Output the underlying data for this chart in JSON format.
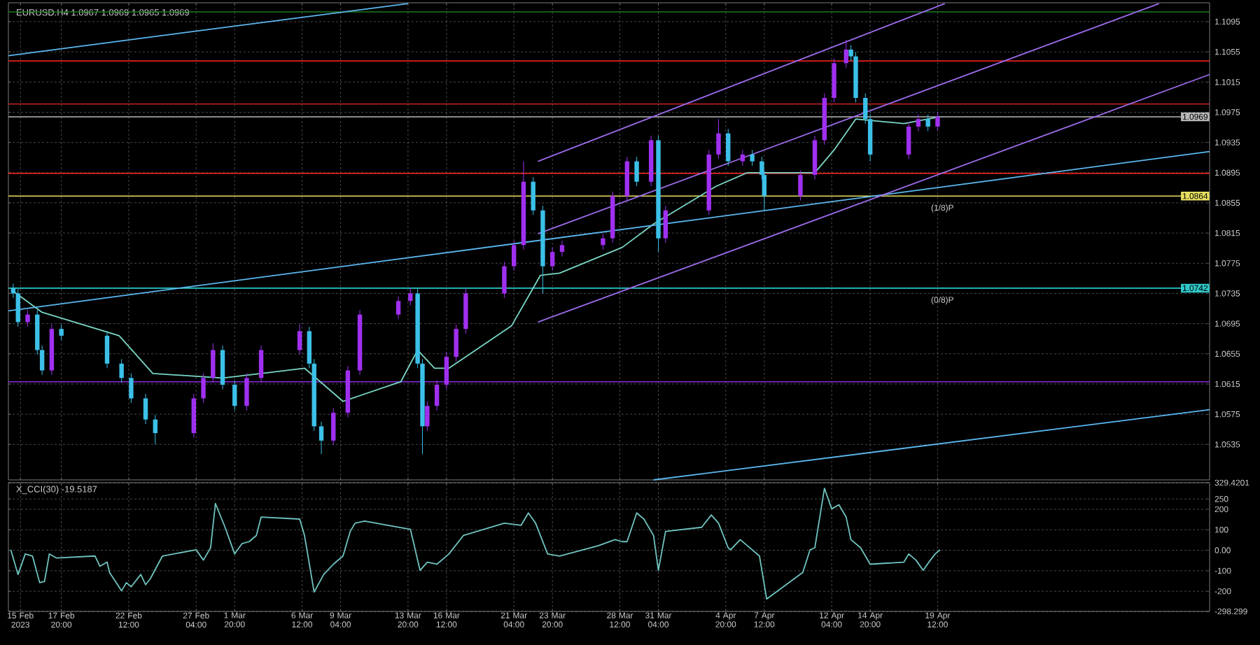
{
  "chart_data": [
    {
      "type": "candlestick",
      "title": "EURUSD.H4  1.0967 1.0969 1.0965 1.0969",
      "x": [
        "2023-02-14T12:00",
        "2023-02-14T20:00",
        "2023-02-15T12:00",
        "2023-02-16T04:00",
        "2023-02-16T12:00",
        "2023-02-17T04:00",
        "2023-02-17T20:00",
        "2023-02-21T00:00",
        "2023-02-22T00:00",
        "2023-02-22T16:00",
        "2023-02-23T16:00",
        "2023-02-24T08:00",
        "2023-02-27T00:00",
        "2023-02-27T16:00",
        "2023-02-28T08:00",
        "2023-03-01T00:00",
        "2023-03-01T20:00",
        "2023-03-02T16:00",
        "2023-03-03T16:00",
        "2023-03-06T08:00",
        "2023-03-07T00:00",
        "2023-03-07T08:00",
        "2023-03-07T20:00",
        "2023-03-08T16:00",
        "2023-03-09T16:00",
        "2023-03-10T12:00",
        "2023-03-13T04:00",
        "2023-03-14T00:00",
        "2023-03-14T12:00",
        "2023-03-14T20:00",
        "2023-03-15T04:00",
        "2023-03-15T20:00",
        "2023-03-16T12:00",
        "2023-03-17T04:00",
        "2023-03-17T20:00",
        "2023-03-20T12:00",
        "2023-03-21T04:00",
        "2023-03-21T20:00",
        "2023-03-22T12:00",
        "2023-03-23T04:00",
        "2023-03-23T20:00",
        "2023-03-24T12:00",
        "2023-03-27T08:00",
        "2023-03-28T00:00",
        "2023-03-29T00:00",
        "2023-03-29T16:00",
        "2023-03-30T16:00",
        "2023-03-31T04:00",
        "2023-03-31T16:00",
        "2023-04-03T16:00",
        "2023-04-04T08:00",
        "2023-04-05T00:00",
        "2023-04-06T00:00",
        "2023-04-06T16:00",
        "2023-04-07T08:00",
        "2023-04-07T12:00",
        "2023-04-10T00:00",
        "2023-04-11T00:00",
        "2023-04-11T16:00",
        "2023-04-12T08:00",
        "2023-04-13T04:00",
        "2023-04-13T12:00",
        "2023-04-13T20:00",
        "2023-04-14T12:00",
        "2023-04-14T20:00",
        "2023-04-17T12:00",
        "2023-04-18T04:00",
        "2023-04-18T20:00",
        "2023-04-19T12:00"
      ],
      "ohlc": [
        [
          1.0742,
          1.0748,
          1.0729,
          1.0735
        ],
        [
          1.0735,
          1.0741,
          1.0691,
          1.0697
        ],
        [
          1.0697,
          1.0713,
          1.0691,
          1.0707
        ],
        [
          1.0707,
          1.0713,
          1.0654,
          1.066
        ],
        [
          1.066,
          1.0666,
          1.0627,
          1.0633
        ],
        [
          1.0633,
          1.0694,
          1.0627,
          1.0688
        ],
        [
          1.0688,
          1.0694,
          1.0673,
          1.0679
        ],
        [
          1.0679,
          1.0685,
          1.0636,
          1.0642
        ],
        [
          1.0642,
          1.0648,
          1.0617,
          1.0623
        ],
        [
          1.0623,
          1.0629,
          1.059,
          1.0596
        ],
        [
          1.0596,
          1.0602,
          1.0562,
          1.0568
        ],
        [
          1.0568,
          1.0574,
          1.0535,
          1.055
        ],
        [
          1.055,
          1.0602,
          1.0544,
          1.0596
        ],
        [
          1.0596,
          1.0629,
          1.059,
          1.0623
        ],
        [
          1.0623,
          1.0669,
          1.0617,
          1.066
        ],
        [
          1.066,
          1.0666,
          1.0608,
          1.0614
        ],
        [
          1.0614,
          1.062,
          1.058,
          1.0586
        ],
        [
          1.0586,
          1.0629,
          1.058,
          1.0623
        ],
        [
          1.0623,
          1.0666,
          1.0617,
          1.066
        ],
        [
          1.066,
          1.0694,
          1.0654,
          1.0685
        ],
        [
          1.0685,
          1.0691,
          1.0636,
          1.0642
        ],
        [
          1.0642,
          1.0648,
          1.0553,
          1.0559
        ],
        [
          1.0559,
          1.0565,
          1.0522,
          1.054
        ],
        [
          1.054,
          1.0583,
          1.0534,
          1.0577
        ],
        [
          1.0577,
          1.0639,
          1.0571,
          1.0633
        ],
        [
          1.0633,
          1.0713,
          1.0627,
          1.0707
        ],
        [
          1.0707,
          1.0731,
          1.0701,
          1.0725
        ],
        [
          1.0725,
          1.0742,
          1.0719,
          1.0735
        ],
        [
          1.0735,
          1.0741,
          1.0636,
          1.0642
        ],
        [
          1.0642,
          1.0648,
          1.0522,
          1.0559
        ],
        [
          1.0559,
          1.0592,
          1.0553,
          1.0586
        ],
        [
          1.0586,
          1.062,
          1.058,
          1.0614
        ],
        [
          1.0614,
          1.0657,
          1.0608,
          1.0651
        ],
        [
          1.0651,
          1.0694,
          1.0645,
          1.0688
        ],
        [
          1.0688,
          1.0741,
          1.0682,
          1.0735
        ],
        [
          1.0735,
          1.0777,
          1.0729,
          1.0771
        ],
        [
          1.0771,
          1.0805,
          1.0765,
          1.0799
        ],
        [
          1.0799,
          1.091,
          1.0793,
          1.0883
        ],
        [
          1.0883,
          1.0889,
          1.0839,
          1.0845
        ],
        [
          1.0845,
          1.0851,
          1.0735,
          1.0771
        ],
        [
          1.0771,
          1.0796,
          1.0765,
          1.079
        ],
        [
          1.079,
          1.0805,
          1.0784,
          1.0799
        ],
        [
          1.0799,
          1.0814,
          1.0793,
          1.0808
        ],
        [
          1.0808,
          1.087,
          1.0802,
          1.0864
        ],
        [
          1.0864,
          1.0916,
          1.0858,
          1.091
        ],
        [
          1.091,
          1.0916,
          1.0877,
          1.0883
        ],
        [
          1.0883,
          1.0944,
          1.0877,
          1.0938
        ],
        [
          1.0938,
          1.0944,
          1.079,
          1.0808
        ],
        [
          1.0808,
          1.0851,
          1.0802,
          1.0845
        ],
        [
          1.0845,
          1.0925,
          1.0839,
          1.0919
        ],
        [
          1.0919,
          1.0966,
          1.0913,
          1.0947
        ],
        [
          1.0947,
          1.0953,
          1.0904,
          1.091
        ],
        [
          1.091,
          1.0925,
          1.0904,
          1.0919
        ],
        [
          1.0919,
          1.0925,
          1.0904,
          1.091
        ],
        [
          1.091,
          1.0916,
          1.0886,
          1.0892
        ],
        [
          1.0892,
          1.0898,
          1.0845,
          1.0864
        ],
        [
          1.0864,
          1.0898,
          1.0858,
          1.0892
        ],
        [
          1.0892,
          1.0944,
          1.0886,
          1.0938
        ],
        [
          1.0938,
          1.1,
          1.0932,
          1.0994
        ],
        [
          1.0994,
          1.1046,
          1.0988,
          1.104
        ],
        [
          1.104,
          1.1071,
          1.1034,
          1.1058
        ],
        [
          1.1058,
          1.1064,
          1.1043,
          1.1049
        ],
        [
          1.1049,
          1.1055,
          1.0988,
          1.0994
        ],
        [
          1.0994,
          1.1,
          1.096,
          1.0966
        ],
        [
          1.0966,
          1.0972,
          1.091,
          1.0919
        ],
        [
          1.0919,
          1.0962,
          1.0913,
          1.0956
        ],
        [
          1.0956,
          1.0972,
          1.095,
          1.0966
        ],
        [
          1.0966,
          1.0972,
          1.095,
          1.0956
        ],
        [
          1.0956,
          1.0975,
          1.095,
          1.0969
        ]
      ],
      "colors": [
        "#3cc0e8",
        "#3cc0e8",
        "#a030f0",
        "#3cc0e8",
        "#3cc0e8",
        "#a030f0",
        "#3cc0e8",
        "#3cc0e8",
        "#3cc0e8",
        "#3cc0e8",
        "#3cc0e8",
        "#3cc0e8",
        "#a030f0",
        "#a030f0",
        "#a030f0",
        "#3cc0e8",
        "#3cc0e8",
        "#a030f0",
        "#a030f0",
        "#a030f0",
        "#3cc0e8",
        "#3cc0e8",
        "#3cc0e8",
        "#a030f0",
        "#a030f0",
        "#a030f0",
        "#a030f0",
        "#a030f0",
        "#3cc0e8",
        "#3cc0e8",
        "#a030f0",
        "#a030f0",
        "#a030f0",
        "#a030f0",
        "#a030f0",
        "#a030f0",
        "#a030f0",
        "#a030f0",
        "#3cc0e8",
        "#3cc0e8",
        "#a030f0",
        "#a030f0",
        "#a030f0",
        "#a030f0",
        "#a030f0",
        "#3cc0e8",
        "#a030f0",
        "#3cc0e8",
        "#a030f0",
        "#a030f0",
        "#a030f0",
        "#3cc0e8",
        "#a030f0",
        "#3cc0e8",
        "#3cc0e8",
        "#3cc0e8",
        "#a030f0",
        "#a030f0",
        "#a030f0",
        "#a030f0",
        "#a030f0",
        "#3cc0e8",
        "#3cc0e8",
        "#3cc0e8",
        "#3cc0e8",
        "#a030f0",
        "#a030f0",
        "#3cc0e8",
        "#a030f0"
      ],
      "series": [
        {
          "type": "line",
          "color": "#7ad7c6",
          "x": [
            "2023-02-14T12:00",
            "2023-02-16T12:00",
            "2023-02-21T20:00",
            "2023-02-24T04:00",
            "2023-03-01T00:00",
            "2023-03-03T16:00",
            "2023-03-06T16:00",
            "2023-03-09T08:00",
            "2023-03-13T08:00",
            "2023-03-14T12:00",
            "2023-03-15T16:00",
            "2023-03-16T16:00",
            "2023-03-21T00:00",
            "2023-03-23T00:00",
            "2023-03-24T08:00",
            "2023-03-28T16:00",
            "2023-03-30T20:00",
            "2023-04-04T04:00",
            "2023-04-06T08:00",
            "2023-04-11T00:00",
            "2023-04-12T08:00",
            "2023-04-13T20:00",
            "2023-04-17T04:00",
            "2023-04-19T16:00"
          ],
          "values": [
            1.0738,
            1.071,
            1.0679,
            1.0629,
            1.0623,
            1.0629,
            1.0636,
            1.0592,
            1.0618,
            1.066,
            1.0636,
            1.0636,
            1.0692,
            1.0759,
            1.0762,
            1.0796,
            1.0827,
            1.0877,
            1.0895,
            1.0895,
            1.0925,
            1.0966,
            1.096,
            1.0969
          ]
        },
        {
          "type": "line",
          "color": "#5bb8f0",
          "x": [
            "2023-02-14T04:00",
            "2023-03-13T20:00"
          ],
          "values": [
            1.105,
            1.1119
          ]
        },
        {
          "type": "line",
          "color": "#5bb8f0",
          "x": [
            "2023-02-14T04:00",
            "2023-05-08T08:00"
          ],
          "values": [
            1.0712,
            1.0923
          ]
        },
        {
          "type": "line",
          "color": "#5bb8f0",
          "x": [
            "2023-03-30T20:00",
            "2023-05-08T08:00"
          ],
          "values": [
            1.0488,
            1.0581
          ]
        },
        {
          "type": "line",
          "color": "#9a6be8",
          "x": [
            "2023-03-22T20:00",
            "2023-04-20T00:00"
          ],
          "values": [
            1.091,
            1.1119
          ]
        },
        {
          "type": "line",
          "color": "#9a6be8",
          "x": [
            "2023-03-22T20:00",
            "2023-05-04T20:00"
          ],
          "values": [
            1.0814,
            1.1119
          ]
        },
        {
          "type": "line",
          "color": "#9a6be8",
          "x": [
            "2023-03-22T20:00",
            "2023-05-08T08:00"
          ],
          "values": [
            1.0697,
            1.1025
          ]
        }
      ],
      "ref_lines": [
        {
          "axis": "y",
          "value": 1.1108,
          "color": "#1e7a1e"
        },
        {
          "axis": "y",
          "value": 1.1043,
          "color": "#e02020"
        },
        {
          "axis": "y",
          "value": 1.0986,
          "color": "#b02020"
        },
        {
          "axis": "y",
          "value": 1.0969,
          "color": "#b8b8b8",
          "label": "1.0969"
        },
        {
          "axis": "y",
          "value": 1.0894,
          "color": "#e02020"
        },
        {
          "axis": "y",
          "value": 1.0864,
          "color": "#e8e060",
          "label": "1.0864"
        },
        {
          "axis": "y",
          "value": 1.0742,
          "color": "#30c8c8",
          "label": "1.0742"
        },
        {
          "axis": "y",
          "value": 1.0618,
          "color": "#8a2be2"
        }
      ],
      "annotations": [
        {
          "text": "(1/8)P",
          "x": "2023-04-19T20:00",
          "y": 1.0855
        },
        {
          "text": "(0/8)P",
          "x": "2023-04-19T20:00",
          "y": 1.0733
        }
      ],
      "xlim": [
        "2023-02-14T04:00",
        "2023-05-08T08:00"
      ],
      "xticks": [
        {
          "value": "2023-02-15T00:00",
          "label": null
        },
        {
          "value": "2023-02-17T20:00",
          "label": null
        },
        {
          "value": "2023-02-22T12:00",
          "label": null
        },
        {
          "value": "2023-02-27T04:00",
          "label": null
        },
        {
          "value": "2023-03-01T20:00",
          "label": null
        },
        {
          "value": "2023-03-06T12:00",
          "label": null
        },
        {
          "value": "2023-03-09T04:00",
          "label": null
        },
        {
          "value": "2023-03-13T20:00",
          "label": null
        },
        {
          "value": "2023-03-16T12:00",
          "label": null
        },
        {
          "value": "2023-03-21T04:00",
          "label": null
        },
        {
          "value": "2023-03-23T20:00",
          "label": null
        },
        {
          "value": "2023-03-28T12:00",
          "label": null
        },
        {
          "value": "2023-03-31T04:00",
          "label": null
        },
        {
          "value": "2023-04-04T20:00",
          "label": null
        },
        {
          "value": "2023-04-07T12:00",
          "label": null
        },
        {
          "value": "2023-04-12T04:00",
          "label": null
        },
        {
          "value": "2023-04-14T20:00",
          "label": null
        },
        {
          "value": "2023-04-19T12:00",
          "label": null
        }
      ],
      "ylim": [
        1.0488,
        1.112
      ],
      "yticks": [
        1.1095,
        1.1055,
        1.1015,
        1.0975,
        1.0935,
        1.0895,
        1.0855,
        1.0815,
        1.0775,
        1.0735,
        1.0695,
        1.0655,
        1.0615,
        1.0575,
        1.0535
      ],
      "grid": true,
      "tick_labels": "y"
    },
    {
      "type": "line",
      "title": "X_CCI(30) -19.5187",
      "color": "#6fc4c0",
      "x": [
        "2023-02-14T08:00",
        "2023-02-14T20:00",
        "2023-02-15T08:00",
        "2023-02-15T20:00",
        "2023-02-16T08:00",
        "2023-02-16T16:00",
        "2023-02-17T00:00",
        "2023-02-17T12:00",
        "2023-02-20T04:00",
        "2023-02-20T12:00",
        "2023-02-21T00:00",
        "2023-02-21T04:00",
        "2023-02-22T00:00",
        "2023-02-22T08:00",
        "2023-02-22T16:00",
        "2023-02-23T08:00",
        "2023-02-23T16:00",
        "2023-02-24T00:00",
        "2023-02-24T20:00",
        "2023-02-27T04:00",
        "2023-02-27T16:00",
        "2023-02-28T04:00",
        "2023-02-28T12:00",
        "2023-03-01T04:00",
        "2023-03-01T20:00",
        "2023-03-02T08:00",
        "2023-03-02T20:00",
        "2023-03-03T08:00",
        "2023-03-03T16:00",
        "2023-03-06T08:00",
        "2023-03-06T16:00",
        "2023-03-07T08:00",
        "2023-03-08T00:00",
        "2023-03-08T16:00",
        "2023-03-09T08:00",
        "2023-03-09T20:00",
        "2023-03-10T04:00",
        "2023-03-10T20:00",
        "2023-03-13T04:00",
        "2023-03-14T00:00",
        "2023-03-14T16:00",
        "2023-03-15T04:00",
        "2023-03-15T20:00",
        "2023-03-16T16:00",
        "2023-03-17T16:00",
        "2023-03-20T12:00",
        "2023-03-21T16:00",
        "2023-03-22T04:00",
        "2023-03-22T16:00",
        "2023-03-23T12:00",
        "2023-03-24T08:00",
        "2023-03-27T00:00",
        "2023-03-28T04:00",
        "2023-03-28T16:00",
        "2023-03-29T00:00",
        "2023-03-29T16:00",
        "2023-03-30T04:00",
        "2023-03-30T20:00",
        "2023-03-31T04:00",
        "2023-03-31T16:00",
        "2023-04-03T04:00",
        "2023-04-03T20:00",
        "2023-04-04T08:00",
        "2023-04-05T00:00",
        "2023-04-05T04:00",
        "2023-04-05T20:00",
        "2023-04-06T08:00",
        "2023-04-07T04:00",
        "2023-04-07T16:00",
        "2023-04-10T04:00",
        "2023-04-10T16:00",
        "2023-04-11T00:00",
        "2023-04-11T16:00",
        "2023-04-12T04:00",
        "2023-04-12T16:00",
        "2023-04-13T04:00",
        "2023-04-13T12:00",
        "2023-04-14T04:00",
        "2023-04-14T20:00",
        "2023-04-17T04:00",
        "2023-04-17T12:00",
        "2023-04-18T00:00",
        "2023-04-18T12:00",
        "2023-04-19T00:00",
        "2023-04-19T08:00",
        "2023-04-19T16:00"
      ],
      "values": [
        2,
        -118,
        -18,
        -28,
        -158,
        -152,
        -18,
        -38,
        -28,
        -78,
        -58,
        -108,
        -198,
        -158,
        -178,
        -118,
        -168,
        -138,
        -28,
        2,
        -48,
        12,
        228,
        112,
        -18,
        32,
        42,
        72,
        162,
        152,
        72,
        -204,
        -118,
        -68,
        -28,
        92,
        132,
        142,
        112,
        102,
        -98,
        -58,
        -68,
        -18,
        72,
        132,
        122,
        182,
        132,
        -18,
        -28,
        22,
        52,
        42,
        42,
        182,
        152,
        72,
        -98,
        92,
        112,
        172,
        132,
        12,
        2,
        52,
        22,
        -28,
        -238,
        -108,
        2,
        12,
        302,
        202,
        222,
        162,
        52,
        12,
        -68,
        -58,
        -18,
        -48,
        -98,
        -48,
        -18,
        2
      ],
      "xlim": [
        "2023-02-14T04:00",
        "2023-05-08T08:00"
      ],
      "xticks": [
        {
          "value": "2023-02-15T00:00",
          "label": "15 Feb 2023"
        },
        {
          "value": "2023-02-17T20:00",
          "label": "17 Feb 20:00"
        },
        {
          "value": "2023-02-22T12:00",
          "label": "22 Feb 12:00"
        },
        {
          "value": "2023-02-27T04:00",
          "label": "27 Feb 04:00"
        },
        {
          "value": "2023-03-01T20:00",
          "label": "1 Mar 20:00"
        },
        {
          "value": "2023-03-06T12:00",
          "label": "6 Mar 12:00"
        },
        {
          "value": "2023-03-09T04:00",
          "label": "9 Mar 04:00"
        },
        {
          "value": "2023-03-13T20:00",
          "label": "13 Mar 20:00"
        },
        {
          "value": "2023-03-16T12:00",
          "label": "16 Mar 12:00"
        },
        {
          "value": "2023-03-21T04:00",
          "label": "21 Mar 04:00"
        },
        {
          "value": "2023-03-23T20:00",
          "label": "23 Mar 20:00"
        },
        {
          "value": "2023-03-28T12:00",
          "label": "28 Mar 12:00"
        },
        {
          "value": "2023-03-31T04:00",
          "label": "31 Mar 04:00"
        },
        {
          "value": "2023-04-04T20:00",
          "label": "4 Apr 20:00"
        },
        {
          "value": "2023-04-07T12:00",
          "label": "7 Apr 12:00"
        },
        {
          "value": "2023-04-12T04:00",
          "label": "12 Apr 04:00"
        },
        {
          "value": "2023-04-14T20:00",
          "label": "14 Apr 20:00"
        },
        {
          "value": "2023-04-19T12:00",
          "label": "19 Apr 12:00"
        }
      ],
      "ylim": [
        -298.299,
        329.4201
      ],
      "yticks": [
        {
          "value": 329.4201,
          "label": "329.4201"
        },
        250,
        200,
        100,
        {
          "value": 0,
          "label": "0.00"
        },
        -100,
        -200,
        {
          "value": -298.299,
          "label": "-298.299"
        }
      ],
      "grid": true
    }
  ]
}
